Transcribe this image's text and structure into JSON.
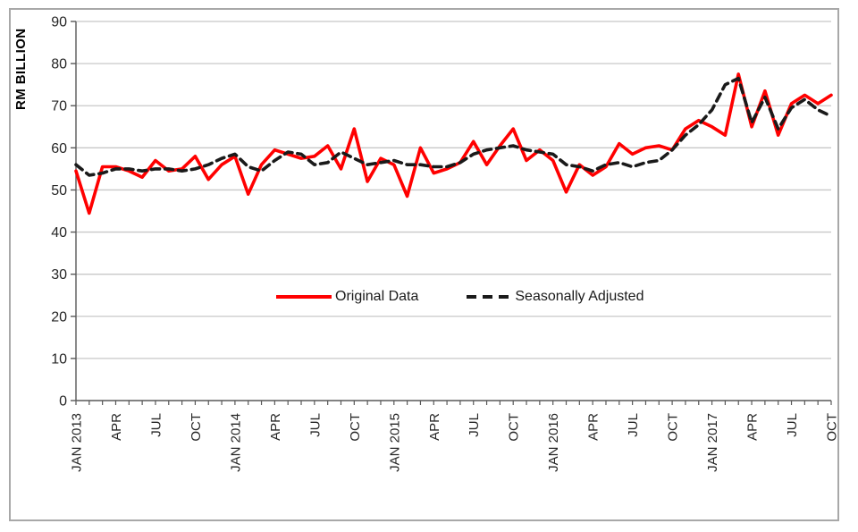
{
  "style": {
    "background": "#ffffff",
    "frame_border_color": "#a8a8a8",
    "grid_color": "#c8c8c8",
    "axis_color": "#595959",
    "tick_label_color": "#262626",
    "legend_text_color": "#1a1a1a"
  },
  "chart_data": {
    "type": "line",
    "title": "",
    "xlabel": "",
    "ylabel": "RM BILLION",
    "ylim": [
      0,
      90
    ],
    "ytick_step": 10,
    "grid": "horizontal",
    "legend_position": "center-inside",
    "y_ticks": [
      "0",
      "10",
      "20",
      "30",
      "40",
      "50",
      "60",
      "70",
      "80",
      "90"
    ],
    "x": [
      "JAN 2013",
      "FEB 2013",
      "MAR 2013",
      "APR 2013",
      "MAY 2013",
      "JUN 2013",
      "JUL 2013",
      "AUG 2013",
      "SEP 2013",
      "OCT 2013",
      "NOV 2013",
      "DEC 2013",
      "JAN 2014",
      "FEB 2014",
      "MAR 2014",
      "APR 2014",
      "MAY 2014",
      "JUN 2014",
      "JUL 2014",
      "AUG 2014",
      "SEP 2014",
      "OCT 2014",
      "NOV 2014",
      "DEC 2014",
      "JAN 2015",
      "FEB 2015",
      "MAR 2015",
      "APR 2015",
      "MAY 2015",
      "JUN 2015",
      "JUL 2015",
      "AUG 2015",
      "SEP 2015",
      "OCT 2015",
      "NOV 2015",
      "DEC 2015",
      "JAN 2016",
      "FEB 2016",
      "MAR 2016",
      "APR 2016",
      "MAY 2016",
      "JUN 2016",
      "JUL 2016",
      "AUG 2016",
      "SEP 2016",
      "OCT 2016",
      "NOV 2016",
      "DEC 2016",
      "JAN 2017",
      "FEB 2017",
      "MAR 2017",
      "APR 2017",
      "MAY 2017",
      "JUN 2017",
      "JUL 2017",
      "AUG 2017",
      "SEP 2017",
      "OCT 2017"
    ],
    "x_ticks": [
      {
        "index": 0,
        "label": "JAN 2013"
      },
      {
        "index": 3,
        "label": "APR"
      },
      {
        "index": 6,
        "label": "JUL"
      },
      {
        "index": 9,
        "label": "OCT"
      },
      {
        "index": 12,
        "label": "JAN 2014"
      },
      {
        "index": 15,
        "label": "APR"
      },
      {
        "index": 18,
        "label": "JUL"
      },
      {
        "index": 21,
        "label": "OCT"
      },
      {
        "index": 24,
        "label": "JAN 2015"
      },
      {
        "index": 27,
        "label": "APR"
      },
      {
        "index": 30,
        "label": "JUL"
      },
      {
        "index": 33,
        "label": "OCT"
      },
      {
        "index": 36,
        "label": "JAN 2016"
      },
      {
        "index": 39,
        "label": "APR"
      },
      {
        "index": 42,
        "label": "JUL"
      },
      {
        "index": 45,
        "label": "OCT"
      },
      {
        "index": 48,
        "label": "JAN 2017"
      },
      {
        "index": 51,
        "label": "APR"
      },
      {
        "index": 54,
        "label": "JUL"
      },
      {
        "index": 57,
        "label": "OCT"
      }
    ],
    "series": [
      {
        "name": "Original Data",
        "color": "#ff0000",
        "style": "solid",
        "values": [
          54.5,
          44.5,
          55.5,
          55.5,
          54.5,
          53,
          57,
          54.5,
          55,
          58,
          52.5,
          56,
          58,
          49,
          56,
          59.5,
          58.5,
          57.5,
          58,
          60.5,
          55,
          64.5,
          52,
          57.5,
          56,
          48.5,
          60,
          54,
          55,
          56.5,
          61.5,
          56,
          60.5,
          64.5,
          57,
          59.5,
          57,
          49.5,
          56,
          53.5,
          55.5,
          61,
          58.5,
          60,
          60.5,
          59.5,
          64.5,
          66.5,
          65,
          63,
          77.5,
          65,
          73.5,
          63,
          70.5,
          72.5,
          70.5,
          72.5
        ]
      },
      {
        "name": "Seasonally Adjusted",
        "color": "#1a1a1a",
        "style": "dashed",
        "values": [
          56,
          53.5,
          54,
          55,
          55,
          54.5,
          55,
          55,
          54.5,
          55,
          56,
          57.5,
          58.5,
          55.5,
          54.5,
          57,
          59,
          58.5,
          56,
          56.5,
          59,
          57.5,
          56,
          56.5,
          57,
          56,
          56,
          55.5,
          55.5,
          56.5,
          58.5,
          59.5,
          60,
          60.5,
          59.5,
          59,
          58.5,
          56,
          55.5,
          54.5,
          56,
          56.5,
          55.5,
          56.5,
          57,
          59.5,
          63,
          65.5,
          69,
          75,
          76.5,
          66,
          72,
          64.5,
          69.5,
          71.5,
          69,
          67.5
        ]
      }
    ]
  }
}
